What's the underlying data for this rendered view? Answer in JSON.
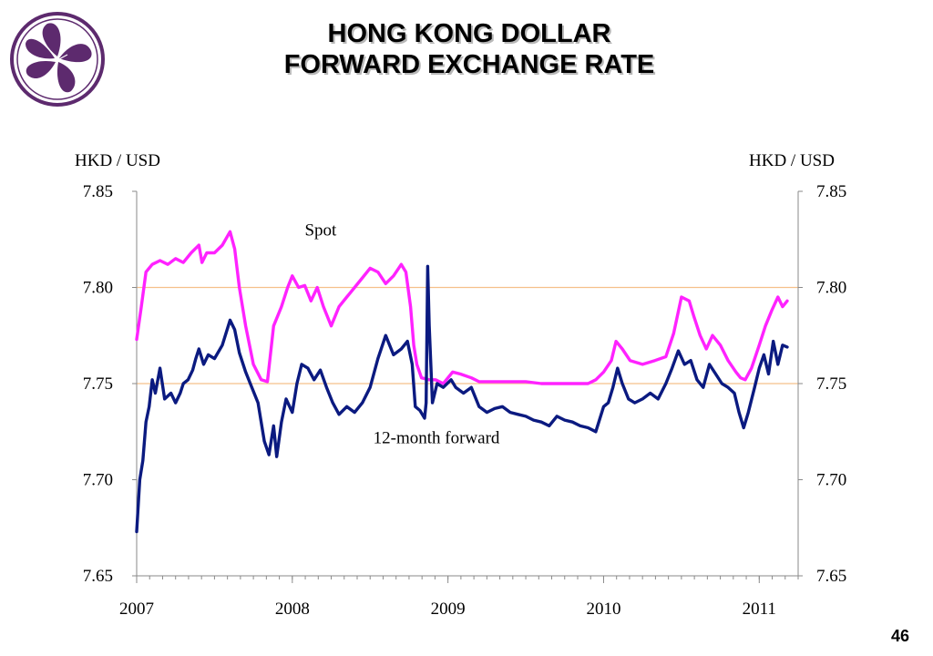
{
  "header": {
    "title_line1": "HONG KONG DOLLAR",
    "title_line2": "FORWARD EXCHANGE RATE",
    "logo_icon": "bauhinia-flower-logo-icon"
  },
  "page_number": "46",
  "chart_data": {
    "type": "line",
    "title": "HONG KONG DOLLAR FORWARD EXCHANGE RATE",
    "ylabel_left": "HKD / USD",
    "ylabel_right": "HKD / USD",
    "ylim": [
      7.65,
      7.85
    ],
    "yticks": [
      "7.65",
      "7.70",
      "7.75",
      "7.80",
      "7.85"
    ],
    "ytick_values": [
      7.65,
      7.7,
      7.75,
      7.8,
      7.85
    ],
    "xlim": [
      2007.0,
      2011.25
    ],
    "xticks": [
      "2007",
      "2008",
      "2009",
      "2010",
      "2011"
    ],
    "xtick_values": [
      2007,
      2008,
      2009,
      2010,
      2011
    ],
    "reference_lines": [
      7.75,
      7.8
    ],
    "reference_line_color": "#f5c08a",
    "grid": false,
    "series": [
      {
        "name": "Spot",
        "color": "#ff22ff",
        "points": [
          [
            2007.0,
            7.773
          ],
          [
            2007.03,
            7.79
          ],
          [
            2007.06,
            7.808
          ],
          [
            2007.1,
            7.812
          ],
          [
            2007.15,
            7.814
          ],
          [
            2007.2,
            7.812
          ],
          [
            2007.25,
            7.815
          ],
          [
            2007.3,
            7.813
          ],
          [
            2007.35,
            7.818
          ],
          [
            2007.4,
            7.822
          ],
          [
            2007.42,
            7.813
          ],
          [
            2007.45,
            7.818
          ],
          [
            2007.5,
            7.818
          ],
          [
            2007.55,
            7.822
          ],
          [
            2007.6,
            7.829
          ],
          [
            2007.63,
            7.82
          ],
          [
            2007.66,
            7.8
          ],
          [
            2007.7,
            7.78
          ],
          [
            2007.75,
            7.76
          ],
          [
            2007.8,
            7.752
          ],
          [
            2007.84,
            7.751
          ],
          [
            2007.88,
            7.78
          ],
          [
            2007.93,
            7.79
          ],
          [
            2007.97,
            7.8
          ],
          [
            2008.0,
            7.806
          ],
          [
            2008.04,
            7.8
          ],
          [
            2008.08,
            7.801
          ],
          [
            2008.12,
            7.793
          ],
          [
            2008.16,
            7.8
          ],
          [
            2008.2,
            7.79
          ],
          [
            2008.25,
            7.78
          ],
          [
            2008.3,
            7.79
          ],
          [
            2008.35,
            7.795
          ],
          [
            2008.4,
            7.8
          ],
          [
            2008.45,
            7.805
          ],
          [
            2008.5,
            7.81
          ],
          [
            2008.55,
            7.808
          ],
          [
            2008.6,
            7.802
          ],
          [
            2008.65,
            7.806
          ],
          [
            2008.7,
            7.812
          ],
          [
            2008.73,
            7.808
          ],
          [
            2008.76,
            7.79
          ],
          [
            2008.78,
            7.77
          ],
          [
            2008.8,
            7.76
          ],
          [
            2008.83,
            7.753
          ],
          [
            2008.88,
            7.752
          ],
          [
            2008.92,
            7.752
          ],
          [
            2008.97,
            7.75
          ],
          [
            2009.03,
            7.756
          ],
          [
            2009.08,
            7.755
          ],
          [
            2009.15,
            7.753
          ],
          [
            2009.2,
            7.751
          ],
          [
            2009.3,
            7.751
          ],
          [
            2009.4,
            7.751
          ],
          [
            2009.5,
            7.751
          ],
          [
            2009.6,
            7.75
          ],
          [
            2009.7,
            7.75
          ],
          [
            2009.8,
            7.75
          ],
          [
            2009.9,
            7.75
          ],
          [
            2009.95,
            7.752
          ],
          [
            2010.0,
            7.756
          ],
          [
            2010.05,
            7.762
          ],
          [
            2010.08,
            7.772
          ],
          [
            2010.12,
            7.768
          ],
          [
            2010.17,
            7.762
          ],
          [
            2010.25,
            7.76
          ],
          [
            2010.33,
            7.762
          ],
          [
            2010.4,
            7.764
          ],
          [
            2010.45,
            7.776
          ],
          [
            2010.5,
            7.795
          ],
          [
            2010.55,
            7.793
          ],
          [
            2010.58,
            7.785
          ],
          [
            2010.62,
            7.775
          ],
          [
            2010.66,
            7.768
          ],
          [
            2010.7,
            7.775
          ],
          [
            2010.75,
            7.77
          ],
          [
            2010.8,
            7.762
          ],
          [
            2010.85,
            7.756
          ],
          [
            2010.88,
            7.753
          ],
          [
            2010.91,
            7.752
          ],
          [
            2010.95,
            7.758
          ],
          [
            2011.0,
            7.77
          ],
          [
            2011.04,
            7.78
          ],
          [
            2011.08,
            7.788
          ],
          [
            2011.12,
            7.795
          ],
          [
            2011.15,
            7.79
          ],
          [
            2011.18,
            7.793
          ]
        ]
      },
      {
        "name": "12-month forward",
        "color": "#0b1a80",
        "points": [
          [
            2007.0,
            7.673
          ],
          [
            2007.02,
            7.7
          ],
          [
            2007.04,
            7.71
          ],
          [
            2007.06,
            7.73
          ],
          [
            2007.08,
            7.738
          ],
          [
            2007.1,
            7.752
          ],
          [
            2007.12,
            7.745
          ],
          [
            2007.15,
            7.758
          ],
          [
            2007.18,
            7.742
          ],
          [
            2007.22,
            7.745
          ],
          [
            2007.25,
            7.74
          ],
          [
            2007.28,
            7.745
          ],
          [
            2007.3,
            7.75
          ],
          [
            2007.33,
            7.752
          ],
          [
            2007.36,
            7.757
          ],
          [
            2007.38,
            7.763
          ],
          [
            2007.4,
            7.768
          ],
          [
            2007.43,
            7.76
          ],
          [
            2007.46,
            7.765
          ],
          [
            2007.5,
            7.763
          ],
          [
            2007.55,
            7.77
          ],
          [
            2007.6,
            7.783
          ],
          [
            2007.63,
            7.778
          ],
          [
            2007.66,
            7.766
          ],
          [
            2007.7,
            7.756
          ],
          [
            2007.74,
            7.748
          ],
          [
            2007.78,
            7.74
          ],
          [
            2007.82,
            7.72
          ],
          [
            2007.85,
            7.713
          ],
          [
            2007.88,
            7.728
          ],
          [
            2007.9,
            7.712
          ],
          [
            2007.93,
            7.73
          ],
          [
            2007.96,
            7.742
          ],
          [
            2008.0,
            7.735
          ],
          [
            2008.03,
            7.75
          ],
          [
            2008.06,
            7.76
          ],
          [
            2008.1,
            7.758
          ],
          [
            2008.14,
            7.752
          ],
          [
            2008.18,
            7.757
          ],
          [
            2008.22,
            7.748
          ],
          [
            2008.26,
            7.74
          ],
          [
            2008.3,
            7.734
          ],
          [
            2008.35,
            7.738
          ],
          [
            2008.4,
            7.735
          ],
          [
            2008.45,
            7.74
          ],
          [
            2008.5,
            7.748
          ],
          [
            2008.55,
            7.763
          ],
          [
            2008.6,
            7.775
          ],
          [
            2008.65,
            7.765
          ],
          [
            2008.7,
            7.768
          ],
          [
            2008.74,
            7.772
          ],
          [
            2008.77,
            7.76
          ],
          [
            2008.79,
            7.738
          ],
          [
            2008.82,
            7.736
          ],
          [
            2008.85,
            7.732
          ],
          [
            2008.86,
            7.74
          ],
          [
            2008.87,
            7.811
          ],
          [
            2008.88,
            7.78
          ],
          [
            2008.9,
            7.74
          ],
          [
            2008.93,
            7.75
          ],
          [
            2008.97,
            7.748
          ],
          [
            2009.02,
            7.752
          ],
          [
            2009.05,
            7.748
          ],
          [
            2009.1,
            7.745
          ],
          [
            2009.15,
            7.748
          ],
          [
            2009.2,
            7.738
          ],
          [
            2009.25,
            7.735
          ],
          [
            2009.3,
            7.737
          ],
          [
            2009.35,
            7.738
          ],
          [
            2009.4,
            7.735
          ],
          [
            2009.45,
            7.734
          ],
          [
            2009.5,
            7.733
          ],
          [
            2009.55,
            7.731
          ],
          [
            2009.6,
            7.73
          ],
          [
            2009.65,
            7.728
          ],
          [
            2009.7,
            7.733
          ],
          [
            2009.75,
            7.731
          ],
          [
            2009.8,
            7.73
          ],
          [
            2009.85,
            7.728
          ],
          [
            2009.9,
            7.727
          ],
          [
            2009.95,
            7.725
          ],
          [
            2010.0,
            7.738
          ],
          [
            2010.03,
            7.74
          ],
          [
            2010.06,
            7.748
          ],
          [
            2010.09,
            7.758
          ],
          [
            2010.12,
            7.75
          ],
          [
            2010.16,
            7.742
          ],
          [
            2010.2,
            7.74
          ],
          [
            2010.25,
            7.742
          ],
          [
            2010.3,
            7.745
          ],
          [
            2010.35,
            7.742
          ],
          [
            2010.4,
            7.75
          ],
          [
            2010.44,
            7.758
          ],
          [
            2010.48,
            7.767
          ],
          [
            2010.52,
            7.76
          ],
          [
            2010.56,
            7.762
          ],
          [
            2010.6,
            7.752
          ],
          [
            2010.64,
            7.748
          ],
          [
            2010.68,
            7.76
          ],
          [
            2010.72,
            7.755
          ],
          [
            2010.76,
            7.75
          ],
          [
            2010.8,
            7.748
          ],
          [
            2010.84,
            7.745
          ],
          [
            2010.87,
            7.735
          ],
          [
            2010.9,
            7.727
          ],
          [
            2010.93,
            7.735
          ],
          [
            2010.97,
            7.748
          ],
          [
            2011.0,
            7.758
          ],
          [
            2011.03,
            7.765
          ],
          [
            2011.06,
            7.755
          ],
          [
            2011.09,
            7.772
          ],
          [
            2011.12,
            7.76
          ],
          [
            2011.15,
            7.77
          ],
          [
            2011.18,
            7.769
          ]
        ]
      }
    ],
    "annotations": [
      {
        "text": "Spot",
        "x": 2008.08,
        "y": 7.827
      },
      {
        "text": "12-month forward",
        "x": 2008.52,
        "y": 7.719
      }
    ]
  }
}
